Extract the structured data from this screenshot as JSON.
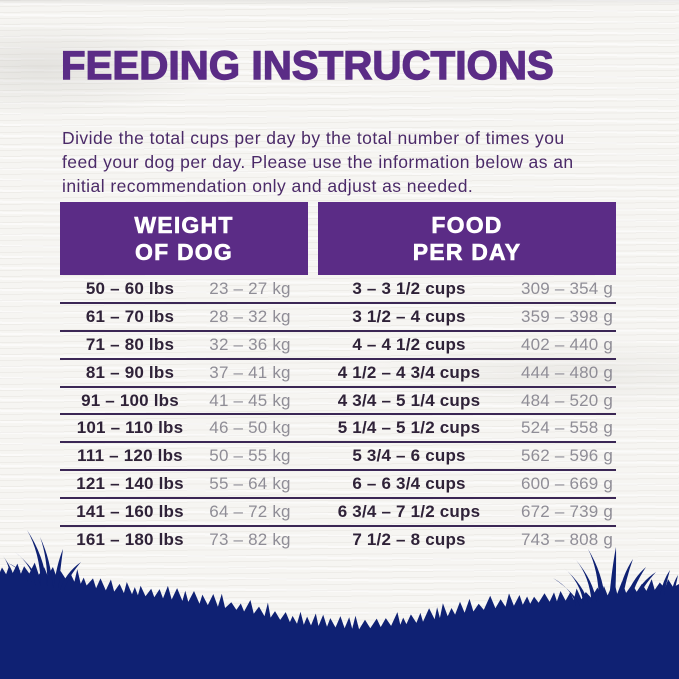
{
  "colors": {
    "background": "#f6f5f2",
    "accent_purple": "#5b2c86",
    "body_text": "#4b2a68",
    "row_dark_text": "#2f2238",
    "row_gray_text": "#8f8d96",
    "separator": "#3b2755",
    "grass_navy": "#0f2173",
    "header_text": "#ffffff"
  },
  "page": {
    "title": "FEEDING INSTRUCTIONS",
    "description_lines": [
      "Divide the total cups per day by the total number of times you",
      "feed your dog per day. Please use the information below as an",
      "initial recommendation only and adjust as needed."
    ]
  },
  "table": {
    "header_weight_line1": "WEIGHT",
    "header_weight_line2": "OF DOG",
    "header_food_line1": "FOOD",
    "header_food_line2": "PER DAY",
    "rows": [
      {
        "lbs": "50 – 60 lbs",
        "kg": "23 – 27 kg",
        "cups": "3 – 3 1/2 cups",
        "grams": "309 – 354 g"
      },
      {
        "lbs": "61 – 70 lbs",
        "kg": "28 – 32 kg",
        "cups": "3 1/2 – 4 cups",
        "grams": "359 – 398 g"
      },
      {
        "lbs": "71 – 80 lbs",
        "kg": "32 – 36 kg",
        "cups": "4 – 4 1/2 cups",
        "grams": "402 – 440 g"
      },
      {
        "lbs": "81 – 90 lbs",
        "kg": "37 – 41 kg",
        "cups": "4 1/2 – 4 3/4 cups",
        "grams": "444 – 480 g"
      },
      {
        "lbs": "91 – 100 lbs",
        "kg": "41 – 45 kg",
        "cups": "4 3/4 – 5 1/4 cups",
        "grams": "484 – 520 g"
      },
      {
        "lbs": "101 – 110 lbs",
        "kg": "46 – 50 kg",
        "cups": "5 1/4 – 5 1/2 cups",
        "grams": "524 – 558 g"
      },
      {
        "lbs": "111 – 120 lbs",
        "kg": "50 – 55 kg",
        "cups": "5 3/4 – 6 cups",
        "grams": "562 – 596 g"
      },
      {
        "lbs": "121 – 140 lbs",
        "kg": "55 – 64 kg",
        "cups": "6 – 6 3/4 cups",
        "grams": "600 – 669 g"
      },
      {
        "lbs": "141 – 160 lbs",
        "kg": "64 – 72 kg",
        "cups": "6 3/4 – 7 1/2 cups",
        "grams": "672 – 739 g"
      },
      {
        "lbs": "161 – 180 lbs",
        "kg": "73 – 82 kg",
        "cups": "7 1/2 – 8 cups",
        "grams": "743 – 808 g"
      }
    ]
  }
}
